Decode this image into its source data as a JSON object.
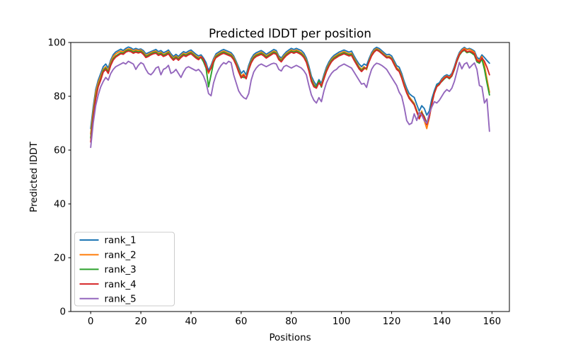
{
  "chart_data": {
    "type": "line",
    "title": "Predicted lDDT per position",
    "xlabel": "Positions",
    "ylabel": "Predicted lDDT",
    "xlim": [
      -7.95,
      166.95
    ],
    "ylim": [
      0,
      100
    ],
    "xticks": [
      0,
      20,
      40,
      60,
      80,
      100,
      120,
      140,
      160
    ],
    "yticks": [
      0,
      20,
      40,
      60,
      80,
      100
    ],
    "grid": false,
    "legend_position": "lower left",
    "x_is_index_from": 0,
    "n_points": 160,
    "series": [
      {
        "name": "rank_1",
        "color": "#1f77b4",
        "values": [
          68,
          76,
          82.5,
          86,
          88.5,
          91,
          92,
          90.5,
          93.5,
          95.5,
          96.5,
          97,
          97.5,
          97,
          97.8,
          98.3,
          98,
          97.4,
          97.8,
          97.4,
          97.6,
          97,
          95.8,
          96.2,
          96.6,
          97,
          97.4,
          96.6,
          97,
          96.2,
          96.6,
          97.2,
          95.8,
          94.8,
          95.6,
          94.8,
          95.8,
          96.6,
          96.2,
          96.8,
          97.2,
          96.4,
          95.6,
          95,
          95.4,
          94.2,
          92.5,
          89.5,
          91.5,
          94,
          95.8,
          96.4,
          97,
          97.4,
          97,
          96.6,
          96.2,
          95,
          93,
          90.8,
          88.5,
          89.5,
          88,
          91.5,
          94,
          95.5,
          96.2,
          96.6,
          97,
          96.4,
          95.6,
          96.2,
          96.8,
          97.4,
          97,
          95,
          94.2,
          95.5,
          96.5,
          97.2,
          97.8,
          97.4,
          97.8,
          97.4,
          97,
          96,
          94.2,
          91.2,
          87.5,
          85.5,
          84,
          86.2,
          84.8,
          88,
          90.8,
          92.8,
          94.2,
          95.2,
          95.8,
          96.4,
          96.8,
          97.2,
          96.8,
          96.4,
          96.8,
          95,
          93.4,
          92,
          91,
          92,
          91.5,
          94,
          96.2,
          97.6,
          98.2,
          97.8,
          97,
          96.2,
          95.4,
          95.6,
          95,
          93.2,
          91.4,
          90.8,
          88.5,
          85.5,
          83,
          81,
          80.2,
          79.6,
          77,
          74.5,
          76.5,
          75.5,
          73,
          74.5,
          79,
          82,
          84.5,
          85,
          86.5,
          87.5,
          88,
          87.5,
          88.5,
          91,
          94,
          96.3,
          97.5,
          98.2,
          97.5,
          97.8,
          97.4,
          96.8,
          94.5,
          93.8,
          95.4,
          94.4,
          93.3,
          92.3
        ]
      },
      {
        "name": "rank_2",
        "color": "#ff7f0e",
        "values": [
          66,
          74.5,
          81.5,
          85,
          87.5,
          90,
          91,
          89.5,
          92.8,
          94.8,
          95.8,
          96.4,
          96.8,
          96.5,
          97.2,
          97.6,
          97.5,
          96.8,
          97.3,
          97,
          97.2,
          96.4,
          95.2,
          95.6,
          96.2,
          96.6,
          96.8,
          96,
          96.4,
          95.6,
          96,
          96.6,
          95.2,
          94.2,
          95,
          94.2,
          95.2,
          96,
          95.6,
          96.2,
          96.6,
          95.8,
          95,
          94.4,
          94.8,
          93.4,
          91.5,
          88.5,
          90.8,
          93.4,
          95.2,
          95.8,
          96.4,
          96.8,
          96.4,
          96,
          95.6,
          94.4,
          92.4,
          89.8,
          87.5,
          88.3,
          86.8,
          90.5,
          93.2,
          94.8,
          95.6,
          96,
          96.4,
          95.8,
          95,
          95.6,
          96.2,
          96.8,
          96.4,
          94.4,
          93.6,
          94.9,
          95.9,
          96.6,
          97.2,
          96.8,
          97.2,
          96.8,
          96.2,
          95.2,
          93.4,
          90.2,
          86.5,
          84.5,
          83.2,
          85.4,
          84,
          87.2,
          90,
          92,
          93.6,
          94.6,
          95.2,
          95.8,
          96.2,
          96.6,
          96.2,
          95.8,
          96,
          94.2,
          92.6,
          91,
          90,
          91,
          89.9,
          93.2,
          95.6,
          97,
          97.7,
          97.2,
          96.4,
          95.6,
          94.8,
          94.9,
          94.2,
          92.4,
          90.6,
          89.8,
          87.5,
          84.5,
          81.8,
          79.8,
          78.6,
          77.4,
          74.8,
          72.2,
          74.5,
          71,
          68,
          72,
          77,
          81,
          83.5,
          84.3,
          86,
          87,
          87.6,
          87,
          88,
          90.4,
          93.4,
          95.8,
          97.1,
          97.8,
          97.2,
          97.5,
          97,
          96.3,
          93.8,
          93.2,
          94.8,
          91.5,
          86.5,
          81.5
        ]
      },
      {
        "name": "rank_3",
        "color": "#2ca02c",
        "values": [
          64.5,
          73,
          80,
          84,
          86.5,
          89.5,
          90.5,
          89,
          92,
          94,
          95,
          95.6,
          96.2,
          96,
          96.8,
          97.2,
          97,
          96.4,
          96.8,
          96.5,
          96.8,
          96,
          94.8,
          95.2,
          95.8,
          96.2,
          96.4,
          95.6,
          96,
          95.2,
          95.6,
          96.2,
          94.8,
          93.8,
          94.6,
          93.8,
          94.8,
          95.6,
          95.2,
          95.8,
          96.2,
          95.4,
          94.6,
          94,
          94.4,
          92.8,
          90.5,
          83.5,
          88,
          92.5,
          94.8,
          95.4,
          96,
          96.4,
          96,
          95.6,
          95.2,
          94,
          92,
          89.4,
          87.2,
          87,
          86.9,
          90,
          92.8,
          94.4,
          95.2,
          95.6,
          96,
          95.4,
          94.6,
          95.2,
          95.8,
          96.4,
          96,
          94,
          93.2,
          94.5,
          95.5,
          96.2,
          96.8,
          96.4,
          96.8,
          96.4,
          95.8,
          94.8,
          93,
          89.8,
          86,
          84,
          83.6,
          85.8,
          83.4,
          86.8,
          89.6,
          91.6,
          93.2,
          94.2,
          94.8,
          95.4,
          95.8,
          96.2,
          95.8,
          95.4,
          95.6,
          93.8,
          92.2,
          90.6,
          89.6,
          90.6,
          90.3,
          93,
          95.2,
          96.6,
          97.4,
          96.9,
          96.1,
          95.3,
          94.5,
          94.6,
          93.9,
          92,
          90.2,
          89.4,
          87,
          84,
          81.4,
          79.4,
          78.2,
          77,
          74.4,
          71.8,
          74,
          72.5,
          70,
          72.5,
          77.5,
          81.3,
          83.8,
          84.6,
          85.5,
          86.5,
          87.2,
          86.5,
          87.5,
          89.9,
          92.9,
          95.2,
          96.5,
          97.1,
          96.2,
          96.5,
          96,
          95.3,
          92.8,
          92.3,
          93.8,
          90,
          85,
          80.5
        ]
      },
      {
        "name": "rank_4",
        "color": "#d62728",
        "values": [
          63,
          72,
          79,
          83.5,
          86,
          89,
          90,
          88.5,
          91.5,
          93.5,
          94.6,
          95.2,
          95.8,
          95.6,
          96.4,
          96.8,
          96.6,
          96,
          96.4,
          96.1,
          96.4,
          95.6,
          94.4,
          94.8,
          95.4,
          95.8,
          96,
          95.2,
          95.6,
          94.8,
          95.2,
          95.8,
          94.4,
          93.4,
          94.2,
          93.4,
          94.4,
          95.2,
          94.8,
          95.4,
          95.8,
          95,
          94.2,
          93.6,
          94.6,
          93.8,
          91,
          89,
          90.4,
          93,
          94.4,
          95,
          95.6,
          96,
          95.6,
          95.2,
          94.8,
          93.6,
          91.6,
          89,
          86.8,
          87.8,
          86.5,
          89.8,
          92.4,
          94,
          94.8,
          95.2,
          95.6,
          95,
          94.2,
          94.8,
          95.4,
          96,
          95.6,
          93.6,
          92.8,
          94.1,
          95.1,
          95.8,
          96.4,
          96,
          96.4,
          96,
          95.4,
          94.4,
          92.6,
          89.4,
          85.5,
          83.5,
          83,
          85,
          83.8,
          86.4,
          89.2,
          91.2,
          92.8,
          93.8,
          94.4,
          95,
          95.4,
          95.8,
          95.4,
          95,
          95.2,
          93.4,
          91.8,
          90.2,
          89.2,
          90.2,
          90.6,
          92.8,
          95,
          96.4,
          97.2,
          96.7,
          95.9,
          95.1,
          94.3,
          94.4,
          93.7,
          91.8,
          90,
          89.2,
          86.8,
          83.8,
          81.2,
          79.2,
          78,
          76.8,
          74.2,
          71.6,
          73.8,
          72.2,
          69.5,
          72.2,
          77.2,
          81.1,
          83.6,
          84.4,
          85.7,
          86.7,
          87.4,
          86.7,
          87.7,
          90.1,
          93.1,
          95.5,
          96.7,
          97.4,
          96.5,
          96.8,
          96.4,
          95.8,
          93.3,
          92.8,
          94.3,
          93,
          90.8,
          88
        ]
      },
      {
        "name": "rank_5",
        "color": "#9467bd",
        "values": [
          61,
          70,
          76.5,
          80.5,
          83.5,
          85.5,
          87,
          86,
          88.5,
          90,
          91,
          91.5,
          92,
          92.5,
          92,
          93,
          92.5,
          92,
          90,
          91.5,
          92.5,
          92,
          90,
          88.5,
          88,
          89,
          90.5,
          91,
          88,
          90,
          90.5,
          91.5,
          88.5,
          89,
          90,
          88.5,
          87,
          89,
          90.5,
          91,
          90.5,
          90,
          89.5,
          90,
          89,
          87.5,
          85,
          81,
          80.2,
          85,
          88,
          90,
          91.5,
          92.5,
          92,
          93,
          92.5,
          88,
          85,
          82,
          80.5,
          79.5,
          79,
          81,
          86,
          89,
          90.5,
          91.5,
          92,
          91.5,
          91,
          91.5,
          92,
          92.3,
          92,
          90,
          89.4,
          91,
          91.5,
          91,
          90.5,
          91,
          91.5,
          91,
          90.5,
          89.5,
          88,
          84,
          80.5,
          78.5,
          77.5,
          79.5,
          78,
          82,
          85,
          87,
          88.5,
          89.5,
          90,
          91,
          91.5,
          92,
          91.5,
          91,
          90.5,
          89,
          87.5,
          86,
          84.5,
          84.8,
          83.3,
          87,
          90,
          91.5,
          92.3,
          92,
          91.5,
          90.8,
          90,
          88.5,
          87,
          85.5,
          84,
          81.5,
          80,
          76,
          71,
          69.5,
          70,
          73.5,
          71,
          74,
          73,
          71,
          70,
          73.5,
          76,
          78,
          77.5,
          78.5,
          80,
          81.5,
          82.5,
          81.8,
          83,
          85.5,
          89,
          92.6,
          90.2,
          92,
          92.5,
          90.5,
          91.5,
          92.4,
          90,
          84,
          83.5,
          77.5,
          79,
          67
        ]
      }
    ]
  }
}
